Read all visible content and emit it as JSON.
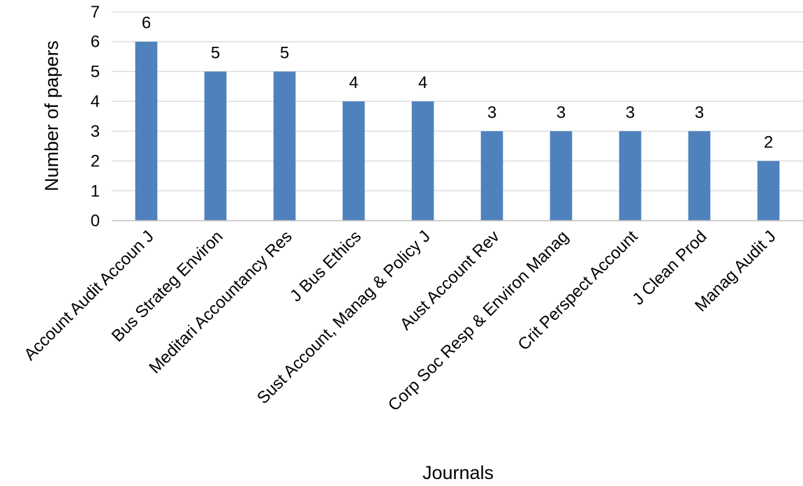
{
  "chart_data": {
    "type": "bar",
    "title": "",
    "xlabel": "Journals",
    "ylabel": "Number of papers",
    "categories": [
      "Account Audit Accoun J",
      "Bus Strateg Environ",
      "Meditari Accountancy Res",
      "J Bus Ethics",
      "Sust Account, Manag & Policy J",
      "Aust Account Rev",
      "Corp Soc Resp & Environ Manag",
      "Crit Perspect Account",
      "J Clean Prod",
      "Manag Audit J"
    ],
    "values": [
      6,
      5,
      5,
      4,
      4,
      3,
      3,
      3,
      3,
      2
    ],
    "data_labels": [
      "6",
      "5",
      "5",
      "4",
      "4",
      "3",
      "3",
      "3",
      "3",
      "2"
    ],
    "ylim": [
      0,
      7
    ],
    "yticks": [
      "0",
      "1",
      "2",
      "3",
      "4",
      "5",
      "6",
      "7"
    ],
    "grid": true,
    "legend": "none",
    "bar_color": "#4F81BD",
    "grid_color": "#D9D9D9",
    "axis_color": "#BFBFBF"
  }
}
